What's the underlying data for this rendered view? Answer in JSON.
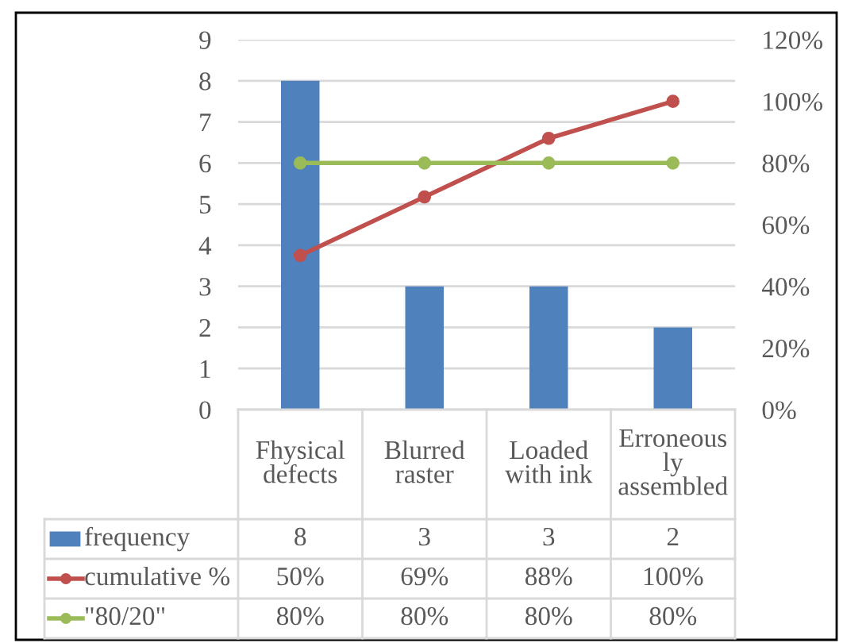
{
  "chart_data": {
    "type": "bar",
    "categories": [
      "Fhysical\ndefects",
      "Blurred\nraster",
      "Loaded\nwith ink",
      "Erroneous\nly\nassembled"
    ],
    "series": [
      {
        "name": "frequency",
        "color": "#4f81bd",
        "values": [
          8,
          3,
          3,
          2
        ],
        "value_labels": [
          "8",
          "3",
          "3",
          "2"
        ]
      },
      {
        "name": "cumulative %",
        "type": "line",
        "axis": "y2",
        "color": "#c0504d",
        "values": [
          50,
          69,
          88,
          100
        ],
        "value_labels": [
          "50%",
          "69%",
          "88%",
          "100%"
        ]
      },
      {
        "name": "\"80/20\"",
        "type": "line",
        "axis": "y2",
        "color": "#9bbb59",
        "values": [
          80,
          80,
          80,
          80
        ],
        "value_labels": [
          "80%",
          "80%",
          "80%",
          "80%"
        ]
      }
    ],
    "ylim": [
      0,
      9
    ],
    "yticks": [
      0,
      1,
      2,
      3,
      4,
      5,
      6,
      7,
      8,
      9
    ],
    "y2lim": [
      0,
      120
    ],
    "y2ticks": [
      {
        "value": 0,
        "label": "0%"
      },
      {
        "value": 20,
        "label": "20%"
      },
      {
        "value": 40,
        "label": "40%"
      },
      {
        "value": 60,
        "label": "60%"
      },
      {
        "value": 80,
        "label": "80%"
      },
      {
        "value": 100,
        "label": "100%"
      },
      {
        "value": 120,
        "label": "120%"
      }
    ],
    "grid": "y",
    "legend": "bottom",
    "marker": "circle",
    "line_style": "solid"
  }
}
